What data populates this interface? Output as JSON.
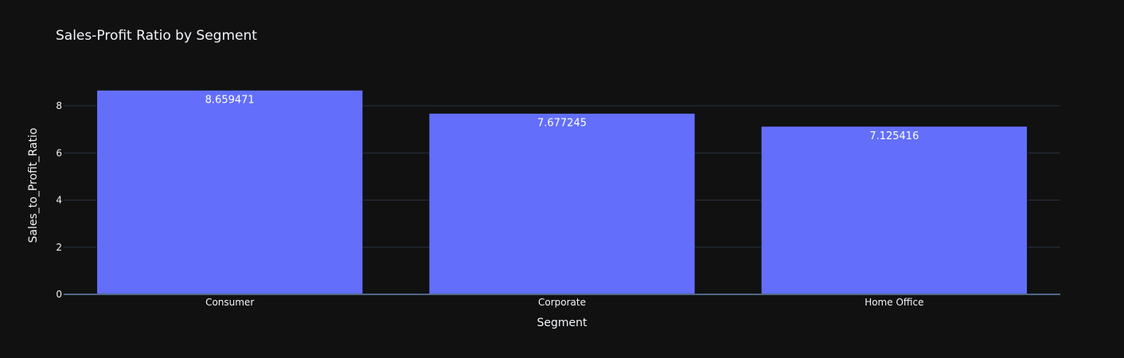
{
  "chart_data": {
    "type": "bar",
    "title": "Sales-Profit Ratio by Segment",
    "xlabel": "Segment",
    "ylabel": "Sales_to_Profit_Ratio",
    "categories": [
      "Consumer",
      "Corporate",
      "Home Office"
    ],
    "values": [
      8.659471,
      7.677245,
      7.125416
    ],
    "value_labels": [
      "8.659471",
      "7.677245",
      "7.125416"
    ],
    "ylim": [
      0,
      9.115
    ],
    "yticks": [
      0,
      2,
      4,
      6,
      8
    ],
    "ytick_labels": [
      "0",
      "2",
      "4",
      "6",
      "8"
    ],
    "grid": true,
    "bar_color": "#636efa",
    "background": "#111111"
  }
}
